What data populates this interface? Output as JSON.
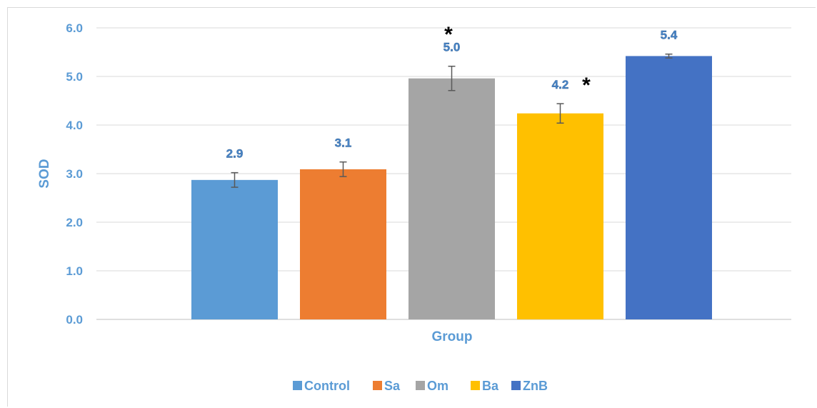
{
  "chart_data": {
    "type": "bar",
    "categories": [
      "Control",
      "Sa",
      "Om",
      "Ba",
      "ZnB"
    ],
    "values": [
      2.87,
      3.09,
      4.96,
      4.24,
      5.42
    ],
    "errors": [
      0.15,
      0.15,
      0.25,
      0.2,
      0.04
    ],
    "data_labels": [
      "2.9",
      "3.1",
      "5.0",
      "4.2",
      "5.4"
    ],
    "significance": [
      "",
      "",
      "*",
      "*",
      ""
    ],
    "colors": [
      "#5b9bd5",
      "#ed7d31",
      "#a5a5a5",
      "#ffc000",
      "#4472c4"
    ],
    "xlabel": "Group",
    "ylabel": "SOD",
    "ylim": [
      0,
      6
    ],
    "yticks": [
      "0.0",
      "1.0",
      "2.0",
      "3.0",
      "4.0",
      "5.0",
      "6.0"
    ],
    "grid": true,
    "legend_position": "bottom"
  }
}
